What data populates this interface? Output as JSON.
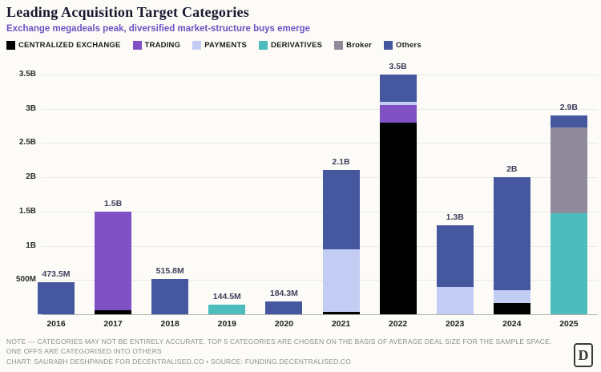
{
  "header": {
    "title": "Leading Acquisition Target Categories",
    "subtitle": "Exchange megadeals peak, diversified market-structure buys emerge"
  },
  "legend": [
    {
      "name": "centralized-exchange",
      "label": "CENTRALIZED EXCHANGE",
      "color": "#000000"
    },
    {
      "name": "trading",
      "label": "TRADING",
      "color": "#8050c5"
    },
    {
      "name": "payments",
      "label": "PAYMENTS",
      "color": "#c3cdf4"
    },
    {
      "name": "derivatives",
      "label": "DERIVATIVES",
      "color": "#4cbcbd"
    },
    {
      "name": "broker",
      "label": "Broker",
      "color": "#8f8b9b"
    },
    {
      "name": "others",
      "label": "Others",
      "color": "#45589f"
    }
  ],
  "chart_data": {
    "type": "bar",
    "stacked": true,
    "grid": "horizontal",
    "unit": "USD",
    "categories": [
      "2016",
      "2017",
      "2018",
      "2019",
      "2020",
      "2021",
      "2022",
      "2023",
      "2024",
      "2025"
    ],
    "series": [
      {
        "name": "CENTRALIZED EXCHANGE",
        "color": "#000000",
        "values": [
          0,
          0.06,
          0,
          0,
          0,
          0.03,
          2.8,
          0,
          0.16,
          0
        ]
      },
      {
        "name": "TRADING",
        "color": "#8050c5",
        "values": [
          0,
          1.44,
          0,
          0,
          0,
          0,
          0.25,
          0,
          0,
          0
        ]
      },
      {
        "name": "PAYMENTS",
        "color": "#c3cdf4",
        "values": [
          0,
          0,
          0,
          0,
          0,
          0.92,
          0.05,
          0.4,
          0.19,
          0
        ]
      },
      {
        "name": "DERIVATIVES",
        "color": "#4cbcbd",
        "values": [
          0,
          0,
          0,
          0.1445,
          0,
          0,
          0,
          0,
          0,
          1.47
        ]
      },
      {
        "name": "Broker",
        "color": "#8f8b9b",
        "values": [
          0,
          0,
          0,
          0,
          0,
          0,
          0,
          0,
          0,
          1.25
        ]
      },
      {
        "name": "Others",
        "color": "#45589f",
        "values": [
          0.4735,
          0,
          0.5158,
          0,
          0.1843,
          1.15,
          0.4,
          0.9,
          1.65,
          0.18
        ]
      }
    ],
    "totals": [
      0.4735,
      1.5,
      0.5158,
      0.1445,
      0.1843,
      2.1,
      3.5,
      1.3,
      2.0,
      2.9
    ],
    "totals_labels": [
      "473.5M",
      "1.5B",
      "515.8M",
      "144.5M",
      "184.3M",
      "2.1B",
      "3.5B",
      "1.3B",
      "2B",
      "2.9B"
    ],
    "yticks": [
      {
        "value": 0.5,
        "label": "500M"
      },
      {
        "value": 1.0,
        "label": "1B"
      },
      {
        "value": 1.5,
        "label": "1.5B"
      },
      {
        "value": 2.0,
        "label": "2B"
      },
      {
        "value": 2.5,
        "label": "2.5B"
      },
      {
        "value": 3.0,
        "label": "3B"
      },
      {
        "value": 3.5,
        "label": "3.5B"
      }
    ],
    "ylim": [
      0,
      3.6
    ],
    "legend_position": "top"
  },
  "footer": {
    "note": "NOTE — CATEGORIES MAY NOT BE ENTIRELY ACCURATE. TOP 5 CATEGORIES ARE CHOSEN ON THE BASIS OF AVERAGE DEAL SIZE FOR THE SAMPLE SPACE. ONE OFFS ARE CATEGORISED INTO OTHERS",
    "credit": "CHART: SAURABH DESHPANDE FOR DECENTRALISED.CO • SOURCE: FUNDING.DECENTRALISED.CO",
    "logo_text": "D"
  }
}
